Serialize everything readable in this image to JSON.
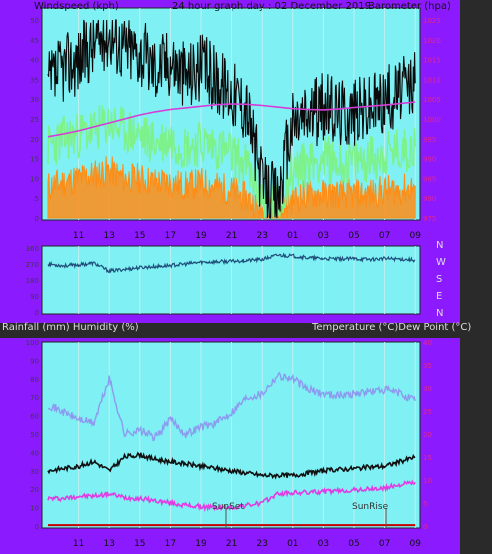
{
  "colors": {
    "frame": "#8c1aff",
    "plot_bg": "#7ff0f4",
    "wind_avg": "#7df28a",
    "wind_gust_fill": "#ff8c14",
    "wind_max": "#0a0a0a",
    "barometer": "#d63cd6",
    "wind_dir": "#1f4f7a",
    "temperature": "#111111",
    "dewpoint": "#e23ce2",
    "humidity": "#8c9bef",
    "rainfall": "#c80000",
    "left_axis_text": "#3c3c3c",
    "right_axis_text": "#e0288c",
    "bottom_axis_text": "#111111",
    "marker": "#555555"
  },
  "header": {
    "left_label": "Windspeed (kph)",
    "center_label": "24 hour graph day : 02 December 2019",
    "right_label": "Barometer (hpa)"
  },
  "middle": {
    "direction_labels": [
      "N",
      "W",
      "S",
      "E",
      "N"
    ],
    "label_left": "Rainfall (mm)  Humidity (%)",
    "label_right": "Temperature (°C)Dew Point (°C)"
  },
  "hour_labels": [
    "11",
    "13",
    "15",
    "17",
    "19",
    "21",
    "23",
    "01",
    "03",
    "05",
    "07",
    "09"
  ],
  "markers": {
    "sunset": "SunSet",
    "sunrise": "SunRise"
  },
  "chart_data": [
    {
      "type": "line",
      "title": "24 hour graph day : 02 December 2019",
      "x_unit": "hour of day",
      "x_ticks": [
        "11",
        "13",
        "15",
        "17",
        "19",
        "21",
        "23",
        "01",
        "03",
        "05",
        "07",
        "09"
      ],
      "left_axis": {
        "label": "Windspeed (kph)",
        "ylim": [
          0,
          50
        ],
        "ticks": [
          0,
          5,
          10,
          15,
          20,
          25,
          30,
          35,
          40,
          45,
          50
        ]
      },
      "right_axis": {
        "label": "Barometer (hpa)",
        "ylim": [
          975,
          1025
        ],
        "ticks": [
          975,
          980,
          985,
          990,
          995,
          1000,
          1005,
          1010,
          1015,
          1020,
          1025
        ]
      },
      "series": [
        {
          "name": "Windspeed (kph)",
          "axis": "left",
          "style": "max",
          "x": [
            "09:00",
            "10:00",
            "11:00",
            "12:00",
            "13:00",
            "14:00",
            "15:00",
            "16:00",
            "17:00",
            "18:00",
            "19:00",
            "20:00",
            "21:00",
            "22:00",
            "23:00",
            "00:00",
            "01:00",
            "02:00",
            "03:00",
            "04:00",
            "05:00",
            "06:00",
            "07:00",
            "08:00",
            "09:00"
          ],
          "values": [
            33,
            38,
            40,
            44,
            47,
            43,
            42,
            38,
            40,
            36,
            38,
            35,
            32,
            28,
            8,
            5,
            24,
            26,
            28,
            27,
            27,
            28,
            30,
            32,
            34
          ]
        },
        {
          "axis": "left",
          "style": "avg",
          "values": [
            18,
            20,
            21,
            22,
            24,
            22,
            21,
            19,
            20,
            18,
            19,
            18,
            16,
            13,
            5,
            3,
            12,
            14,
            15,
            14,
            14,
            15,
            16,
            17,
            18
          ]
        },
        {
          "axis": "left",
          "style": "gust",
          "values": [
            8,
            9,
            10,
            11,
            12,
            10,
            10,
            9,
            9,
            8,
            9,
            8,
            7,
            5,
            2,
            1,
            5,
            6,
            6,
            6,
            6,
            6,
            7,
            7,
            8
          ]
        },
        {
          "name": "Barometer (hpa)",
          "axis": "right",
          "values": [
            995.5,
            996.2,
            997.0,
            998.0,
            999.0,
            1000.0,
            1001.0,
            1001.8,
            1002.4,
            1002.8,
            1003.2,
            1003.6,
            1003.8,
            1003.7,
            1003.4,
            1003.0,
            1002.6,
            1002.4,
            1002.3,
            1002.5,
            1002.9,
            1003.2,
            1003.5,
            1003.9,
            1004.3
          ]
        }
      ]
    },
    {
      "type": "line",
      "x_unit": "hour of day",
      "left_axis": {
        "ylim": [
          0,
          360
        ],
        "ticks": [
          0,
          90,
          180,
          270,
          360
        ]
      },
      "right_axis": {
        "labels": [
          "N",
          "W",
          "S",
          "E",
          "N"
        ]
      },
      "series": [
        {
          "style": "direction",
          "values": [
            270,
            260,
            265,
            275,
            230,
            240,
            250,
            255,
            262,
            270,
            280,
            282,
            285,
            290,
            295,
            320,
            315,
            305,
            300,
            298,
            300,
            296,
            300,
            298,
            292
          ]
        }
      ]
    },
    {
      "type": "line",
      "x_unit": "hour of day",
      "x_ticks": [
        "11",
        "13",
        "15",
        "17",
        "19",
        "21",
        "23",
        "01",
        "03",
        "05",
        "07",
        "09"
      ],
      "left_axis": {
        "label": "Rainfall (mm)  Humidity (%)",
        "ylim": [
          0,
          100
        ],
        "ticks": [
          0,
          10,
          20,
          30,
          40,
          50,
          60,
          70,
          80,
          90,
          100
        ]
      },
      "right_axis": {
        "label": "Temperature (°C)Dew Point (°C)",
        "ylim": [
          0,
          40
        ],
        "ticks": [
          0,
          5,
          10,
          15,
          20,
          25,
          30,
          35,
          40
        ]
      },
      "series": [
        {
          "name": "Humidity (%)",
          "axis": "left",
          "values": [
            66,
            62,
            58,
            56,
            80,
            50,
            52,
            48,
            58,
            50,
            54,
            56,
            62,
            70,
            72,
            82,
            80,
            74,
            72,
            71,
            72,
            73,
            74,
            72,
            68
          ]
        },
        {
          "name": "Temperature (°C)",
          "axis": "right",
          "values": [
            12,
            12.5,
            13,
            14,
            12,
            15,
            15.5,
            14.5,
            14,
            13.5,
            13,
            12.5,
            12,
            11.5,
            11,
            11,
            11,
            11.5,
            12,
            12.3,
            12.5,
            12.8,
            13,
            14,
            15
          ]
        },
        {
          "name": "Dew Point (°C)",
          "axis": "right",
          "values": [
            6,
            6,
            6.5,
            6.5,
            7,
            6.2,
            6,
            5.5,
            5,
            4.5,
            4.2,
            4,
            4,
            4.5,
            5,
            7,
            7.2,
            7.3,
            7.5,
            7.6,
            7.8,
            8,
            8.2,
            9,
            9.5
          ]
        },
        {
          "name": "Rainfall (mm)",
          "axis": "left",
          "values": [
            0.5,
            0.5,
            0.5,
            0.5,
            0.5,
            0.5,
            0.5,
            0.5,
            0.5,
            0.5,
            0.5,
            0.5,
            0.5,
            0.5,
            0.5,
            0.5,
            0.5,
            0.5,
            0.5,
            0.5,
            0.5,
            0.5,
            0.5,
            0.5,
            0.5
          ]
        }
      ]
    }
  ]
}
